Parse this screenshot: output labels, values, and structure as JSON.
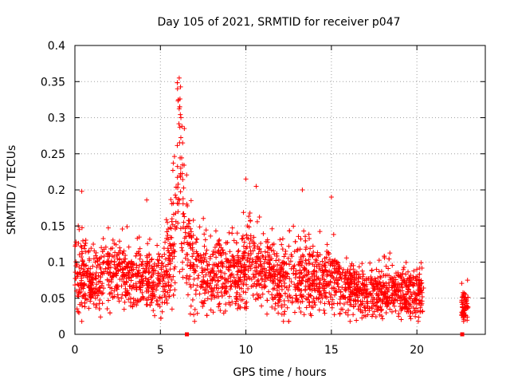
{
  "chart_data": {
    "type": "scatter",
    "title": "Day 105 of 2021, SRMTID for receiver p047",
    "xlabel": "GPS time / hours",
    "ylabel": "SRMTID / TECUs",
    "xlim": [
      0,
      24
    ],
    "ylim": [
      0,
      0.4
    ],
    "x_ticks": [
      "0",
      "5",
      "10",
      "15",
      "20"
    ],
    "y_ticks": [
      "0",
      "0.05",
      "0.1",
      "0.15",
      "0.2",
      "0.25",
      "0.3",
      "0.35",
      "0.4"
    ],
    "grid": true,
    "series": [
      {
        "name": "SRMTID",
        "color": "#ff0000",
        "marker": "plus",
        "segments": [
          {
            "start": 0.0,
            "end": 20.4,
            "count": 2600
          },
          {
            "start": 22.6,
            "end": 23.0,
            "count": 60
          }
        ],
        "envelope": [
          [
            0.0,
            0.085
          ],
          [
            0.5,
            0.08
          ],
          [
            1.0,
            0.07
          ],
          [
            1.5,
            0.075
          ],
          [
            2.0,
            0.085
          ],
          [
            2.5,
            0.09
          ],
          [
            3.0,
            0.08
          ],
          [
            3.5,
            0.075
          ],
          [
            4.0,
            0.08
          ],
          [
            4.5,
            0.07
          ],
          [
            5.0,
            0.065
          ],
          [
            5.5,
            0.095
          ],
          [
            6.0,
            0.2
          ],
          [
            6.2,
            0.24
          ],
          [
            6.5,
            0.12
          ],
          [
            7.0,
            0.085
          ],
          [
            8.0,
            0.085
          ],
          [
            9.0,
            0.09
          ],
          [
            10.0,
            0.09
          ],
          [
            10.5,
            0.1
          ],
          [
            11.0,
            0.085
          ],
          [
            12.0,
            0.075
          ],
          [
            13.0,
            0.08
          ],
          [
            14.0,
            0.08
          ],
          [
            15.0,
            0.075
          ],
          [
            16.0,
            0.065
          ],
          [
            17.0,
            0.055
          ],
          [
            18.0,
            0.06
          ],
          [
            19.0,
            0.06
          ],
          [
            20.0,
            0.055
          ],
          [
            20.4,
            0.055
          ],
          [
            22.6,
            0.04
          ],
          [
            23.0,
            0.04
          ]
        ],
        "notable_points": [
          {
            "x": 6.1,
            "y": 0.355
          },
          {
            "x": 6.0,
            "y": 0.34
          },
          {
            "x": 6.05,
            "y": 0.325
          },
          {
            "x": 6.2,
            "y": 0.3
          },
          {
            "x": 6.4,
            "y": 0.285
          },
          {
            "x": 6.3,
            "y": 0.265
          },
          {
            "x": 0.4,
            "y": 0.198
          },
          {
            "x": 10.0,
            "y": 0.215
          },
          {
            "x": 10.6,
            "y": 0.205
          },
          {
            "x": 13.3,
            "y": 0.2
          },
          {
            "x": 15.0,
            "y": 0.19
          },
          {
            "x": 4.2,
            "y": 0.186
          }
        ],
        "zero_markers": [
          6.55,
          22.65
        ]
      }
    ]
  }
}
